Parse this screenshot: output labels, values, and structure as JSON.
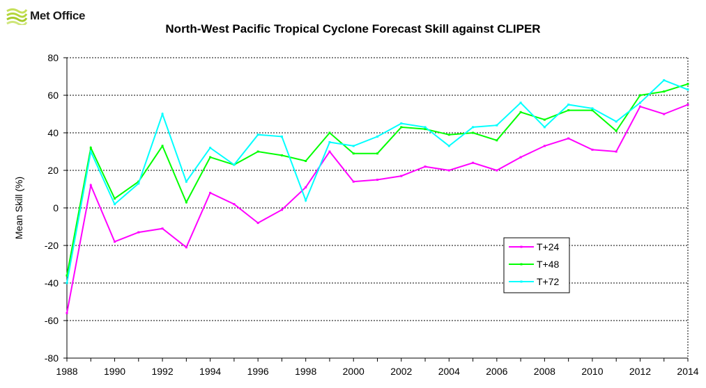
{
  "logo": {
    "text": "Met Office"
  },
  "chart_data": {
    "type": "line",
    "title": "North-West Pacific Tropical Cyclone Forecast Skill against CLIPER",
    "xlabel": "",
    "ylabel": "Mean Skill (%)",
    "x": [
      1988,
      1989,
      1990,
      1991,
      1992,
      1993,
      1994,
      1995,
      1996,
      1997,
      1998,
      1999,
      2000,
      2001,
      2002,
      2003,
      2004,
      2005,
      2006,
      2007,
      2008,
      2009,
      2010,
      2011,
      2012,
      2013,
      2014
    ],
    "xlim": [
      1988,
      2014
    ],
    "ylim": [
      -80,
      80
    ],
    "xticks": [
      "1988",
      "1990",
      "1992",
      "1994",
      "1996",
      "1998",
      "2000",
      "2002",
      "2004",
      "2006",
      "2008",
      "2010",
      "2012",
      "2014"
    ],
    "yticks": [
      "80",
      "60",
      "40",
      "20",
      "0",
      "-20",
      "-40",
      "-60",
      "-80"
    ],
    "grid": "horizontal dashed",
    "legend_position": "lower-right",
    "series": [
      {
        "name": "T+24",
        "color": "#ff00ff",
        "values": [
          -56,
          12,
          -18,
          -13,
          -11,
          -21,
          8,
          2,
          -8,
          -1,
          11,
          30,
          14,
          15,
          17,
          22,
          20,
          24,
          20,
          27,
          33,
          37,
          31,
          30,
          54,
          50,
          55
        ]
      },
      {
        "name": "T+48",
        "color": "#00ff00",
        "values": [
          -36,
          32,
          5,
          14,
          33,
          3,
          27,
          23,
          30,
          28,
          25,
          40,
          29,
          29,
          43,
          42,
          39,
          40,
          36,
          51,
          47,
          52,
          52,
          41,
          60,
          62,
          66
        ]
      },
      {
        "name": "T+72",
        "color": "#00ffff",
        "values": [
          -40,
          30,
          2,
          13,
          50,
          14,
          32,
          23,
          39,
          38,
          4,
          35,
          33,
          38,
          45,
          43,
          33,
          43,
          44,
          56,
          43,
          55,
          53,
          46,
          56,
          68,
          63
        ]
      }
    ]
  }
}
